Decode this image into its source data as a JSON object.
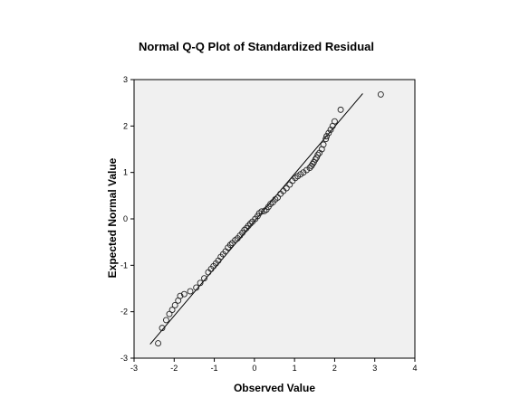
{
  "chart_data": {
    "type": "scatter",
    "title": "Normal Q-Q Plot of Standardized Residual",
    "xlabel": "Observed Value",
    "ylabel": "Expected Normal Value",
    "xlim": [
      -3,
      4
    ],
    "ylim": [
      -3,
      3
    ],
    "xticks": [
      "-3",
      "-2",
      "-1",
      "0",
      "1",
      "2",
      "3",
      "4"
    ],
    "yticks": [
      "-3",
      "-2",
      "-1",
      "0",
      "1",
      "2",
      "3"
    ],
    "grid": false,
    "plot_background": "#f0f0f0",
    "marker": "open-circle",
    "reference_line": {
      "x": [
        -2.6,
        2.7
      ],
      "y": [
        -2.7,
        2.7
      ]
    },
    "x": [
      3.15,
      2.15,
      2.0,
      1.95,
      1.9,
      1.85,
      1.8,
      1.78,
      1.72,
      1.68,
      1.62,
      1.58,
      1.55,
      1.52,
      1.48,
      1.45,
      1.42,
      1.38,
      1.3,
      1.22,
      1.15,
      1.08,
      1.02,
      0.95,
      0.88,
      0.8,
      0.72,
      0.65,
      0.58,
      0.52,
      0.46,
      0.4,
      0.35,
      0.3,
      0.25,
      0.18,
      0.12,
      0.08,
      0.02,
      -0.05,
      -0.1,
      -0.15,
      -0.2,
      -0.25,
      -0.3,
      -0.36,
      -0.42,
      -0.48,
      -0.55,
      -0.6,
      -0.66,
      -0.72,
      -0.78,
      -0.84,
      -0.9,
      -0.96,
      -1.02,
      -1.08,
      -1.15,
      -1.25,
      -1.35,
      -1.45,
      -1.6,
      -1.75,
      -1.85,
      -1.9,
      -1.98,
      -2.05,
      -2.12,
      -2.2,
      -2.3,
      -2.4
    ],
    "y": [
      2.68,
      2.35,
      2.1,
      2.0,
      1.92,
      1.85,
      1.78,
      1.72,
      1.6,
      1.5,
      1.42,
      1.38,
      1.32,
      1.28,
      1.22,
      1.18,
      1.14,
      1.1,
      1.05,
      1.0,
      0.96,
      0.92,
      0.88,
      0.82,
      0.74,
      0.66,
      0.6,
      0.54,
      0.46,
      0.42,
      0.36,
      0.32,
      0.26,
      0.2,
      0.17,
      0.16,
      0.12,
      0.06,
      0.0,
      -0.06,
      -0.1,
      -0.15,
      -0.2,
      -0.24,
      -0.3,
      -0.36,
      -0.42,
      -0.46,
      -0.52,
      -0.56,
      -0.62,
      -0.7,
      -0.76,
      -0.82,
      -0.9,
      -0.96,
      -1.02,
      -1.08,
      -1.15,
      -1.28,
      -1.38,
      -1.48,
      -1.56,
      -1.62,
      -1.66,
      -1.76,
      -1.86,
      -1.96,
      -2.05,
      -2.18,
      -2.35,
      -2.68
    ]
  }
}
